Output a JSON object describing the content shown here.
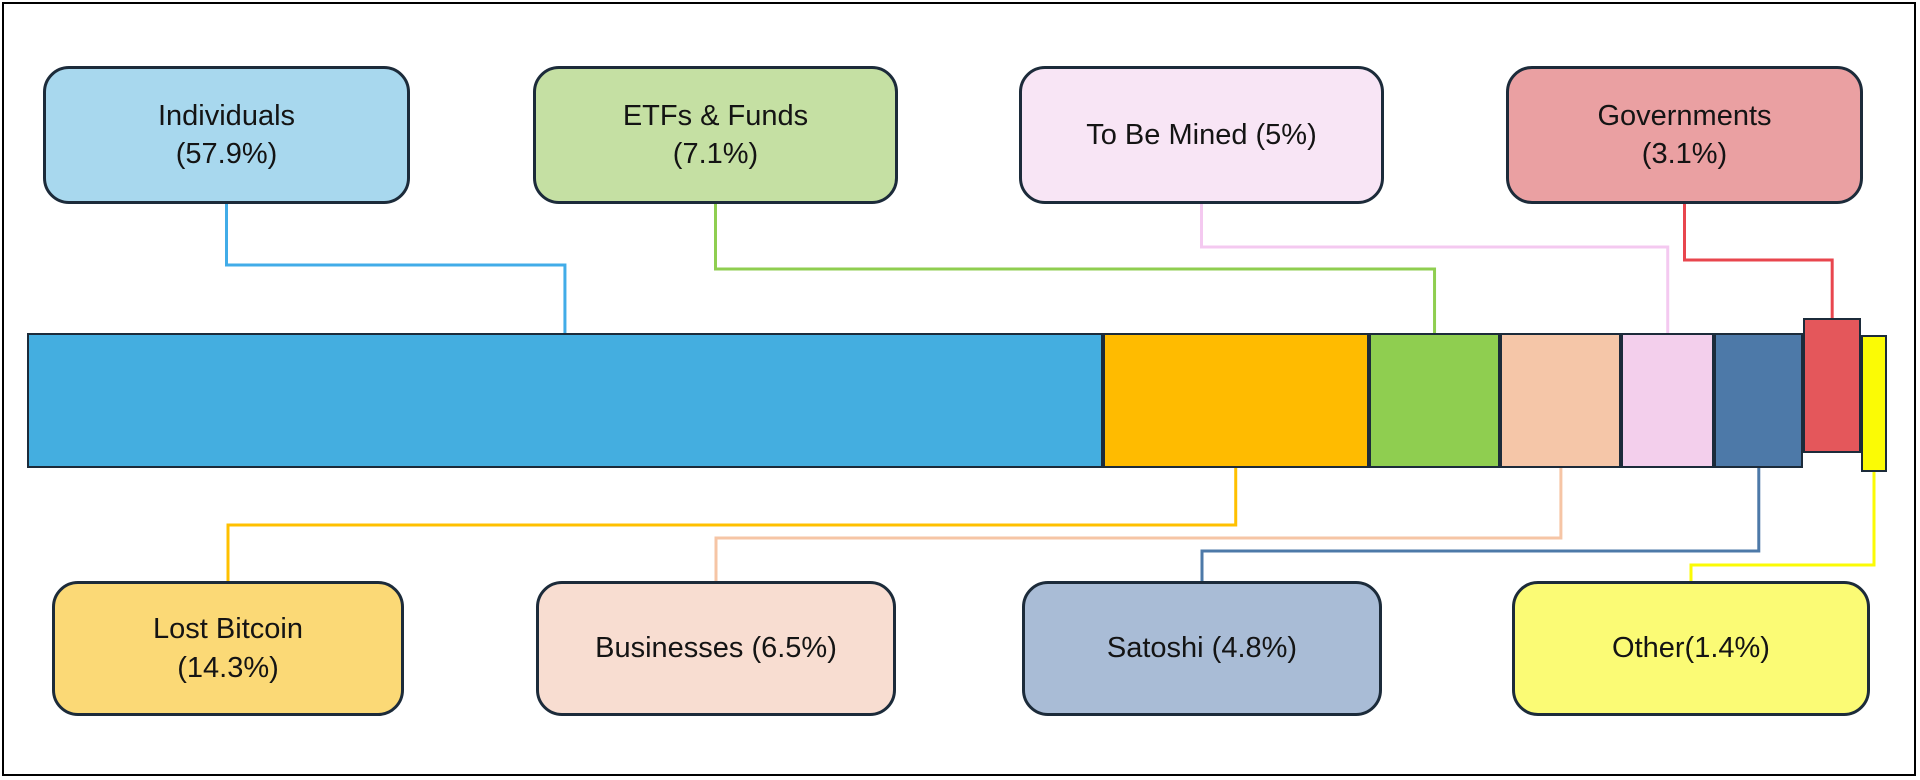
{
  "chart_data": {
    "type": "bar",
    "title": "",
    "orientation": "horizontal-stacked",
    "unit": "%",
    "total": 100,
    "legend_position": "callout-boxes",
    "colors": {
      "outline": "#1C2B3A",
      "frame": "#000000",
      "background": "#FFFFFF",
      "text": "#141414"
    },
    "segments": [
      {
        "key": "individuals",
        "label": "Individuals (57.9%)",
        "pct": 57.9,
        "bar_color": "#44AEE0",
        "box_color": "#A8D8EE",
        "line_color": "#41ACE8",
        "label_position": "top",
        "label_lines": [
          "Individuals",
          "(57.9%)"
        ]
      },
      {
        "key": "lost",
        "label": "Lost Bitcoin (14.3%)",
        "pct": 14.3,
        "bar_color": "#FFBB00",
        "box_color": "#FBD976",
        "line_color": "#FFC000",
        "label_position": "bottom",
        "label_lines": [
          "Lost Bitcoin",
          "(14.3%)"
        ]
      },
      {
        "key": "etfs",
        "label": "ETFs & Funds (7.1%)",
        "pct": 7.1,
        "bar_color": "#8FCE50",
        "box_color": "#C5E0A3",
        "line_color": "#8FCE50",
        "label_position": "top",
        "label_lines": [
          "ETFs & Funds",
          "(7.1%)"
        ]
      },
      {
        "key": "businesses",
        "label": "Businesses (6.5%)",
        "pct": 6.5,
        "bar_color": "#F5C6A8",
        "box_color": "#F8DDD1",
        "line_color": "#F6C5A5",
        "label_position": "bottom",
        "label_lines": [
          "Businesses (6.5%)"
        ]
      },
      {
        "key": "tobemined",
        "label": "To Be Mined (5%)",
        "pct": 5,
        "bar_color": "#F3CFEC",
        "box_color": "#F8E5F5",
        "line_color": "#F4C9F0",
        "label_position": "top",
        "label_lines": [
          "To Be Mined (5%)"
        ]
      },
      {
        "key": "satoshi",
        "label": "Satoshi (4.8%)",
        "pct": 4.8,
        "bar_color": "#4D79A8",
        "box_color": "#A9BCD6",
        "line_color": "#4D79A8",
        "label_position": "bottom",
        "label_lines": [
          "Satoshi (4.8%)"
        ]
      },
      {
        "key": "governments",
        "label": "Governments (3.1%)",
        "pct": 3.1,
        "bar_color": "#E4575B",
        "box_color": "#EAA0A2",
        "line_color": "#E8464E",
        "label_position": "top",
        "label_lines": [
          "Governments",
          "(3.1%)"
        ]
      },
      {
        "key": "other",
        "label": "Other(1.4%)",
        "pct": 1.4,
        "bar_color": "#FBFB05",
        "box_color": "#FBFB75",
        "line_color": "#FBFB05",
        "label_position": "bottom",
        "label_lines": [
          "Other(1.4%)"
        ]
      }
    ]
  }
}
